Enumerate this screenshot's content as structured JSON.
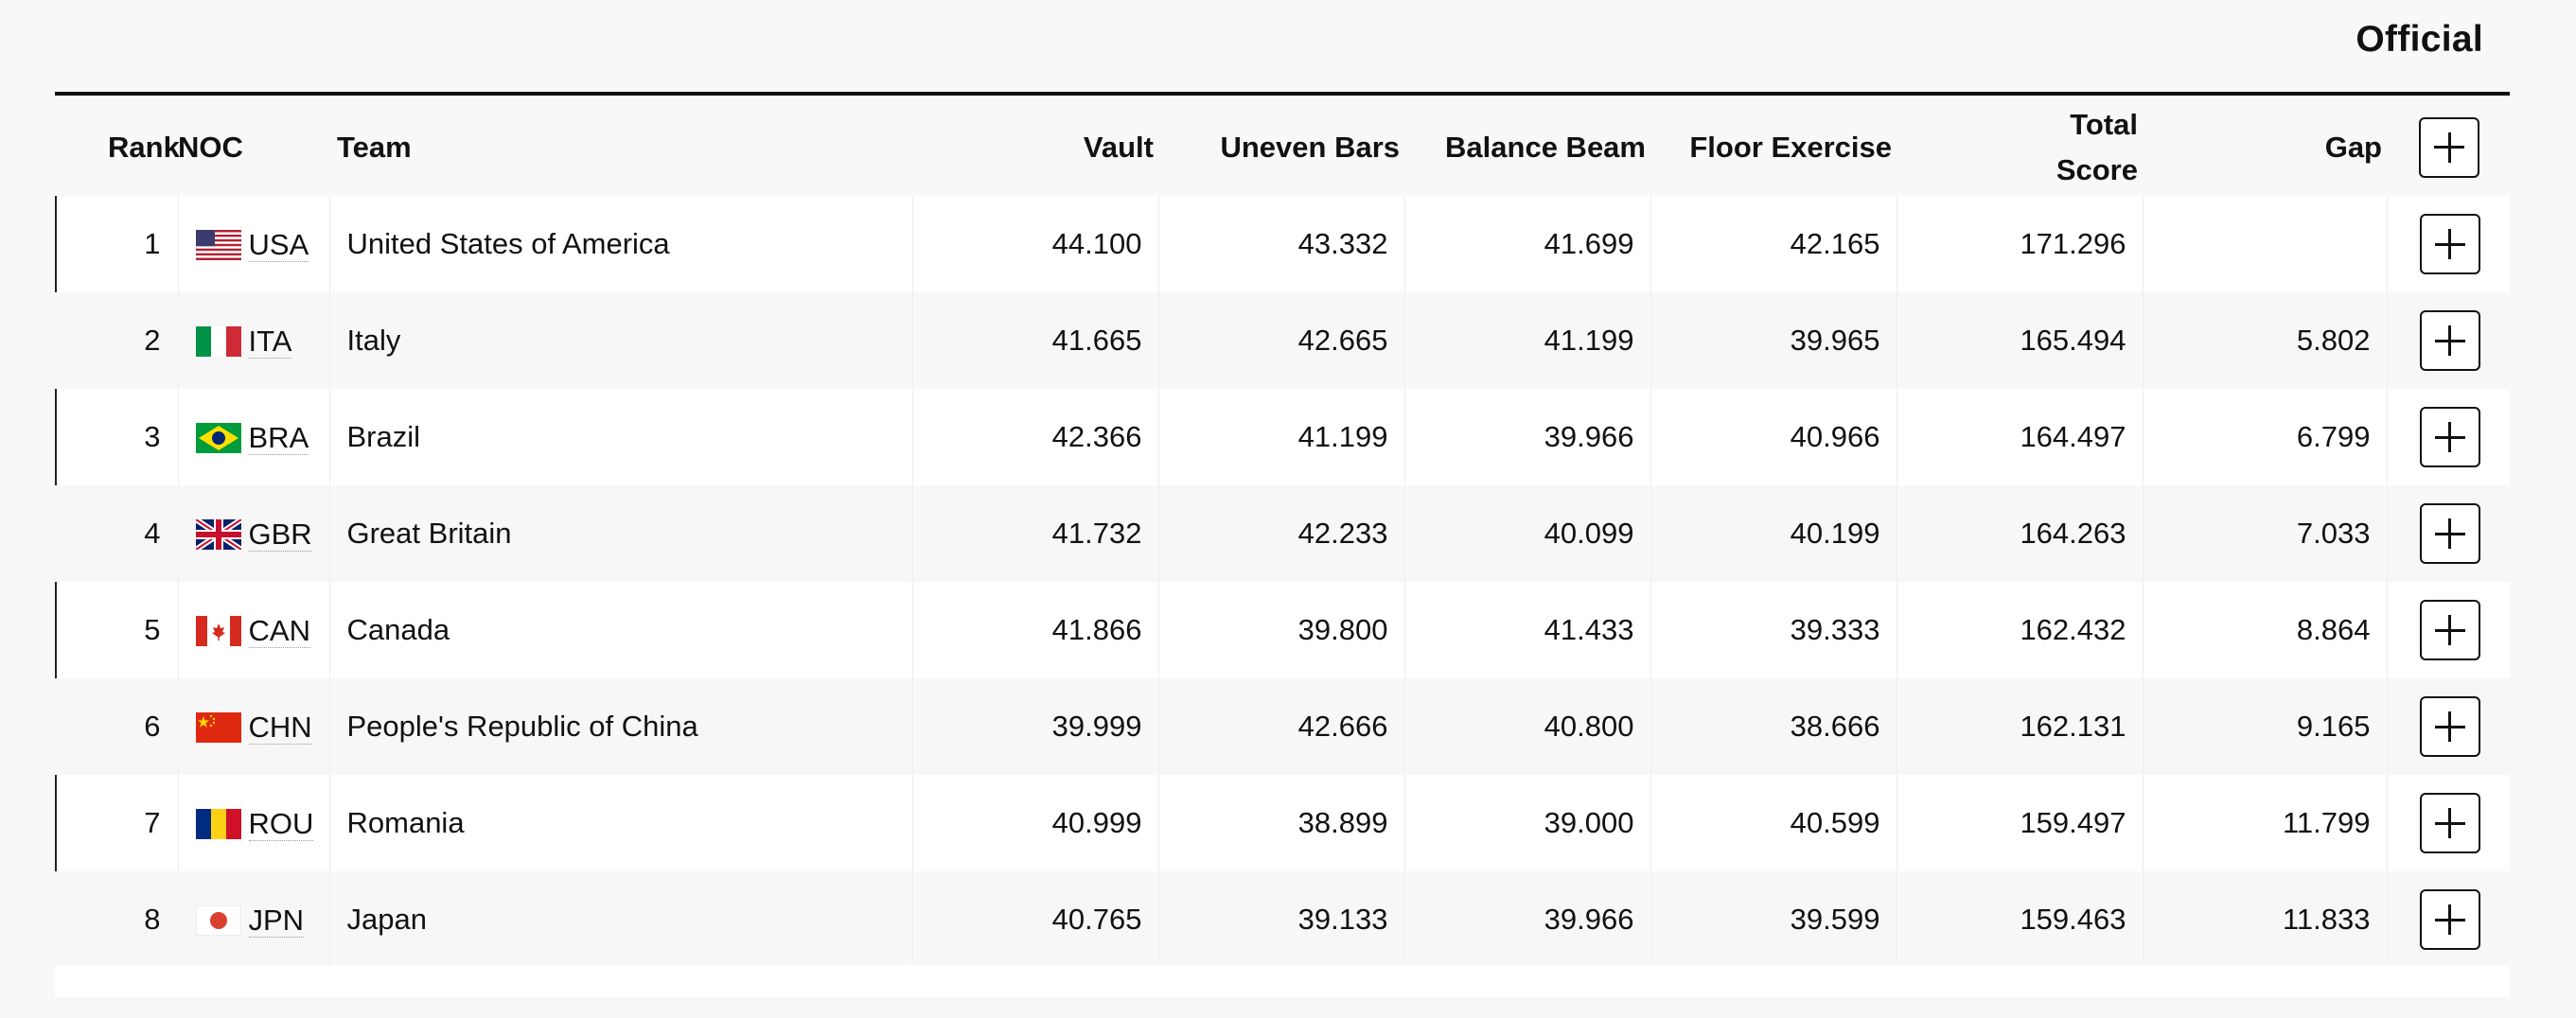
{
  "header": {
    "status": "Official"
  },
  "columns": {
    "rank": "Rank",
    "noc": "NOC",
    "team": "Team",
    "vault": "Vault",
    "uneven_bars": "Uneven Bars",
    "balance_beam": "Balance Beam",
    "floor_exercise": "Floor Exercise",
    "total_score_line1": "Total",
    "total_score_line2": "Score",
    "gap": "Gap"
  },
  "rows": [
    {
      "rank": "1",
      "noc": "USA",
      "flag_icon": "usa-flag-icon",
      "team": "United States of America",
      "vault": "44.100",
      "uneven_bars": "43.332",
      "balance_beam": "41.699",
      "floor_exercise": "42.165",
      "total": "171.296",
      "gap": ""
    },
    {
      "rank": "2",
      "noc": "ITA",
      "flag_icon": "italy-flag-icon",
      "team": "Italy",
      "vault": "41.665",
      "uneven_bars": "42.665",
      "balance_beam": "41.199",
      "floor_exercise": "39.965",
      "total": "165.494",
      "gap": "5.802"
    },
    {
      "rank": "3",
      "noc": "BRA",
      "flag_icon": "brazil-flag-icon",
      "team": "Brazil",
      "vault": "42.366",
      "uneven_bars": "41.199",
      "balance_beam": "39.966",
      "floor_exercise": "40.966",
      "total": "164.497",
      "gap": "6.799"
    },
    {
      "rank": "4",
      "noc": "GBR",
      "flag_icon": "great-britain-flag-icon",
      "team": "Great Britain",
      "vault": "41.732",
      "uneven_bars": "42.233",
      "balance_beam": "40.099",
      "floor_exercise": "40.199",
      "total": "164.263",
      "gap": "7.033"
    },
    {
      "rank": "5",
      "noc": "CAN",
      "flag_icon": "canada-flag-icon",
      "team": "Canada",
      "vault": "41.866",
      "uneven_bars": "39.800",
      "balance_beam": "41.433",
      "floor_exercise": "39.333",
      "total": "162.432",
      "gap": "8.864"
    },
    {
      "rank": "6",
      "noc": "CHN",
      "flag_icon": "china-flag-icon",
      "team": "People's Republic of China",
      "vault": "39.999",
      "uneven_bars": "42.666",
      "balance_beam": "40.800",
      "floor_exercise": "38.666",
      "total": "162.131",
      "gap": "9.165"
    },
    {
      "rank": "7",
      "noc": "ROU",
      "flag_icon": "romania-flag-icon",
      "team": "Romania",
      "vault": "40.999",
      "uneven_bars": "38.899",
      "balance_beam": "39.000",
      "floor_exercise": "40.599",
      "total": "159.497",
      "gap": "11.799"
    },
    {
      "rank": "8",
      "noc": "JPN",
      "flag_icon": "japan-flag-icon",
      "team": "Japan",
      "vault": "40.765",
      "uneven_bars": "39.133",
      "balance_beam": "39.966",
      "floor_exercise": "39.599",
      "total": "159.463",
      "gap": "11.833"
    }
  ],
  "colors": {
    "text": "#111111",
    "row_odd": "#ffffff",
    "row_even": "#f7f7f7",
    "page_background": "#f8f8f8"
  }
}
